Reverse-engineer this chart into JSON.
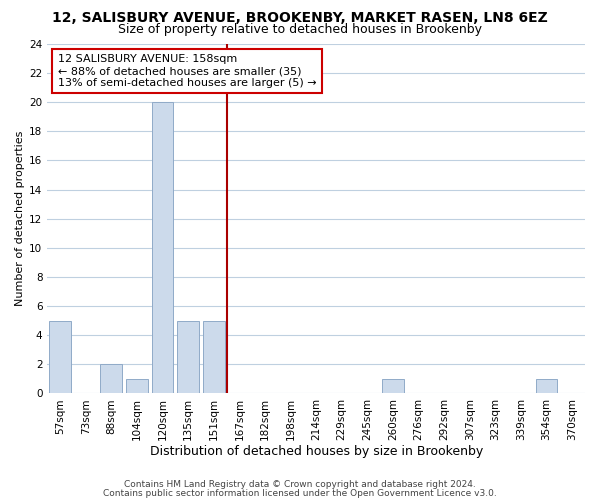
{
  "title1": "12, SALISBURY AVENUE, BROOKENBY, MARKET RASEN, LN8 6EZ",
  "title2": "Size of property relative to detached houses in Brookenby",
  "xlabel": "Distribution of detached houses by size in Brookenby",
  "ylabel": "Number of detached properties",
  "bin_labels": [
    "57sqm",
    "73sqm",
    "88sqm",
    "104sqm",
    "120sqm",
    "135sqm",
    "151sqm",
    "167sqm",
    "182sqm",
    "198sqm",
    "214sqm",
    "229sqm",
    "245sqm",
    "260sqm",
    "276sqm",
    "292sqm",
    "307sqm",
    "323sqm",
    "339sqm",
    "354sqm",
    "370sqm"
  ],
  "bar_heights": [
    5,
    0,
    2,
    1,
    20,
    5,
    5,
    0,
    0,
    0,
    0,
    0,
    0,
    1,
    0,
    0,
    0,
    0,
    0,
    1,
    0
  ],
  "bar_color": "#ccdaeb",
  "bar_edgecolor": "#90aac8",
  "vline_x": 6.5,
  "vline_color": "#aa0000",
  "ylim": [
    0,
    24
  ],
  "yticks": [
    0,
    2,
    4,
    6,
    8,
    10,
    12,
    14,
    16,
    18,
    20,
    22,
    24
  ],
  "annotation_title": "12 SALISBURY AVENUE: 158sqm",
  "annotation_line1": "← 88% of detached houses are smaller (35)",
  "annotation_line2": "13% of semi-detached houses are larger (5) →",
  "annotation_box_color": "#ffffff",
  "annotation_box_edgecolor": "#cc0000",
  "footer1": "Contains HM Land Registry data © Crown copyright and database right 2024.",
  "footer2": "Contains public sector information licensed under the Open Government Licence v3.0.",
  "background_color": "#ffffff",
  "grid_color": "#bfd0e0",
  "title1_fontsize": 10,
  "title2_fontsize": 9,
  "xlabel_fontsize": 9,
  "ylabel_fontsize": 8,
  "tick_fontsize": 7.5,
  "footer_fontsize": 6.5,
  "annotation_fontsize": 8
}
